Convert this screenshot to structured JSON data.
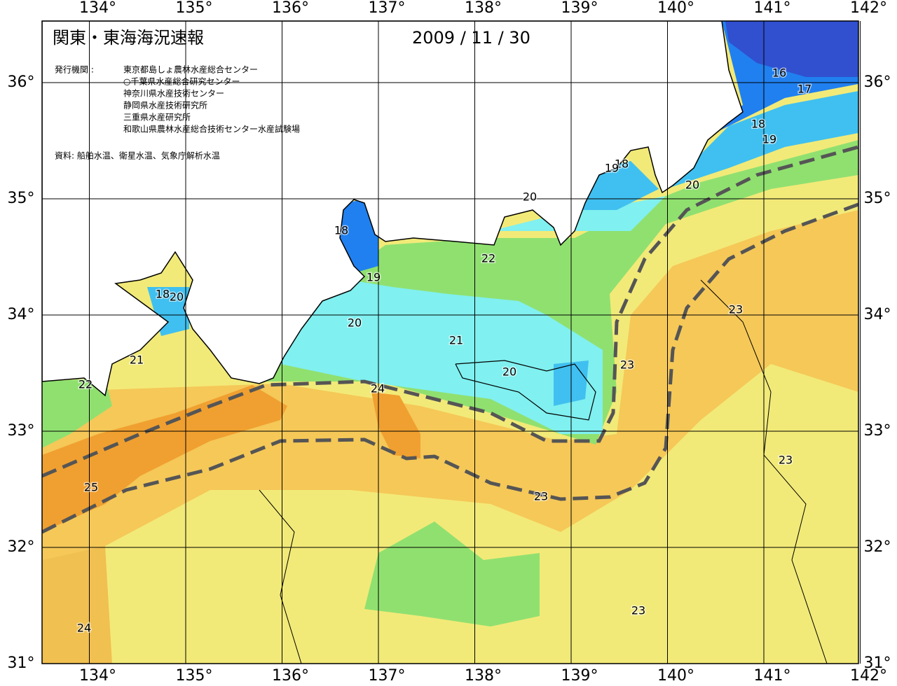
{
  "header": {
    "title": "関東・東海海況速報",
    "date": "2009 / 11 / 30"
  },
  "agencies": {
    "label": "発行機関 :",
    "items": [
      "東京都島しょ農林水産総合センター",
      "○千葉県水産総合研究センター",
      "神奈川県水産技術センター",
      "静岡県水産技術研究所",
      "三重県水産研究所",
      "和歌山県農林水産総合技術センター水産試験場"
    ]
  },
  "source": "資料: 船舶水温、衛星水温、気象庁解析水温",
  "axes": {
    "lon": [
      {
        "value": 134,
        "label": "134°"
      },
      {
        "value": 135,
        "label": "135°"
      },
      {
        "value": 136,
        "label": "136°"
      },
      {
        "value": 137,
        "label": "137°"
      },
      {
        "value": 138,
        "label": "138°"
      },
      {
        "value": 139,
        "label": "139°"
      },
      {
        "value": 140,
        "label": "140°"
      },
      {
        "value": 141,
        "label": "141°"
      },
      {
        "value": 142,
        "label": "142°"
      }
    ],
    "lat": [
      {
        "value": 36,
        "label": "36°"
      },
      {
        "value": 35,
        "label": "35°"
      },
      {
        "value": 34,
        "label": "34°"
      },
      {
        "value": 33,
        "label": "33°"
      },
      {
        "value": 32,
        "label": "32°"
      },
      {
        "value": 31,
        "label": "31°"
      }
    ]
  },
  "contour_labels": [
    16,
    17,
    18,
    19,
    20,
    20,
    18,
    19,
    22,
    20,
    21,
    20,
    23,
    24,
    22,
    21,
    18,
    20,
    25,
    23,
    23,
    23,
    23,
    24,
    18,
    19
  ]
}
